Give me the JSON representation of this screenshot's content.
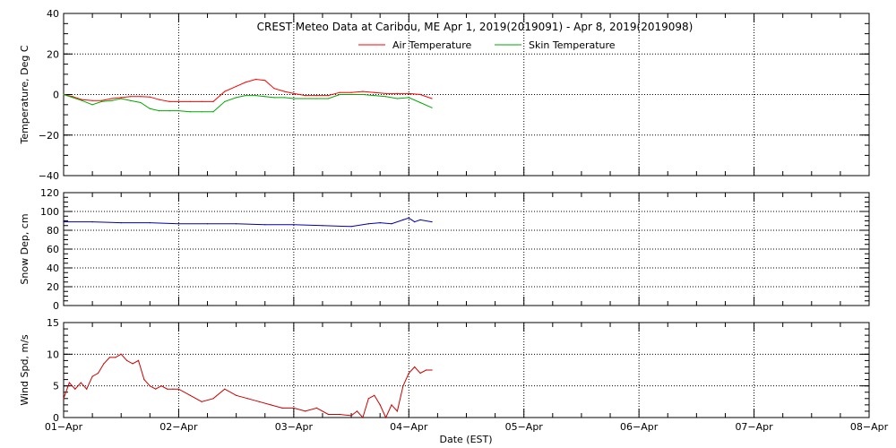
{
  "chart_data": [
    {
      "type": "line",
      "title": "CREST Meteo Data at Caribou, ME   Apr  1, 2019(2019091) - Apr  8, 2019(2019098)",
      "ylabel": "Temperature, Deg C",
      "ylim": [
        -40,
        40
      ],
      "yticks": [
        "40",
        "20",
        "0",
        "−20",
        "−40"
      ],
      "xlim": [
        0,
        7
      ],
      "grid": true,
      "legend_position": "top",
      "series": [
        {
          "name": "Air Temperature",
          "color": "#ff0000",
          "x": [
            0,
            0.08,
            0.16,
            0.25,
            0.33,
            0.42,
            0.5,
            0.58,
            0.67,
            0.75,
            0.83,
            0.92,
            1.0,
            1.1,
            1.2,
            1.3,
            1.4,
            1.5,
            1.58,
            1.67,
            1.75,
            1.83,
            1.92,
            2.0,
            2.1,
            2.2,
            2.3,
            2.4,
            2.5,
            2.6,
            2.7,
            2.8,
            2.9,
            3.0,
            3.1,
            3.2
          ],
          "values": [
            0,
            -1,
            -2.5,
            -3,
            -3,
            -2,
            -1.5,
            -1,
            -1,
            -1.2,
            -2.5,
            -3.5,
            -3.5,
            -3.5,
            -3.5,
            -3.5,
            1.5,
            4,
            6,
            7.5,
            7,
            3,
            1.5,
            0.5,
            -0.5,
            -0.5,
            -0.5,
            1,
            1,
            1.5,
            1,
            0.5,
            0.5,
            0.5,
            0,
            -2
          ]
        },
        {
          "name": "Skin Temperature",
          "color": "#00aa00",
          "x": [
            0,
            0.08,
            0.16,
            0.25,
            0.33,
            0.42,
            0.5,
            0.58,
            0.67,
            0.75,
            0.83,
            0.92,
            1.0,
            1.1,
            1.2,
            1.3,
            1.4,
            1.5,
            1.58,
            1.67,
            1.75,
            1.83,
            1.92,
            2.0,
            2.1,
            2.2,
            2.3,
            2.4,
            2.5,
            2.6,
            2.7,
            2.8,
            2.9,
            3.0,
            3.1,
            3.2
          ],
          "values": [
            0,
            -1.5,
            -3,
            -5,
            -3.5,
            -3,
            -2,
            -3,
            -4,
            -7,
            -8,
            -8,
            -8,
            -8.5,
            -8.5,
            -8.5,
            -3.5,
            -1.5,
            -0.5,
            -0.5,
            -1,
            -1.5,
            -1.5,
            -2,
            -2,
            -2,
            -2,
            0,
            0,
            0,
            -0.5,
            -1,
            -2,
            -1.5,
            -4,
            -6.5
          ]
        }
      ]
    },
    {
      "type": "line",
      "ylabel": "Snow Dep, cm",
      "ylim": [
        0,
        120
      ],
      "yticks": [
        "120",
        "100",
        "80",
        "60",
        "40",
        "20",
        "0"
      ],
      "xlim": [
        0,
        7
      ],
      "grid": true,
      "series": [
        {
          "color": "#0000aa",
          "x": [
            0,
            0.25,
            0.5,
            0.75,
            1.0,
            1.25,
            1.5,
            1.75,
            2.0,
            2.25,
            2.5,
            2.65,
            2.75,
            2.85,
            2.95,
            3.0,
            3.05,
            3.1,
            3.2
          ],
          "values": [
            89,
            89,
            88,
            88,
            87,
            87,
            87,
            86,
            86,
            85,
            84,
            87,
            88,
            87,
            91,
            93,
            89,
            91,
            89
          ]
        }
      ]
    },
    {
      "type": "line",
      "ylabel": "Wind Spd, m/s",
      "xlabel": "Date (EST)",
      "ylim": [
        0,
        15
      ],
      "yticks": [
        "15",
        "10",
        "5",
        "0"
      ],
      "xlim": [
        0,
        7
      ],
      "xticks": [
        "01−Apr",
        "02−Apr",
        "03−Apr",
        "04−Apr",
        "05−Apr",
        "06−Apr",
        "07−Apr",
        "08−Apr"
      ],
      "grid": true,
      "series": [
        {
          "color": "#cc0000",
          "x": [
            0,
            0.05,
            0.1,
            0.15,
            0.2,
            0.25,
            0.3,
            0.35,
            0.4,
            0.45,
            0.5,
            0.55,
            0.6,
            0.65,
            0.7,
            0.75,
            0.8,
            0.85,
            0.9,
            0.95,
            1.0,
            1.1,
            1.2,
            1.3,
            1.4,
            1.5,
            1.6,
            1.7,
            1.8,
            1.9,
            2.0,
            2.1,
            2.2,
            2.3,
            2.4,
            2.5,
            2.55,
            2.6,
            2.65,
            2.7,
            2.75,
            2.8,
            2.85,
            2.9,
            2.95,
            3.0,
            3.05,
            3.1,
            3.15,
            3.2
          ],
          "values": [
            3,
            5.5,
            4.5,
            5.5,
            4.5,
            6.5,
            7,
            8.5,
            9.5,
            9.5,
            10,
            9,
            8.5,
            9,
            6,
            5,
            4.5,
            5,
            4.5,
            4.5,
            4.5,
            3.5,
            2.5,
            3,
            4.5,
            3.5,
            3,
            2.5,
            2,
            1.5,
            1.5,
            1,
            1.5,
            0.5,
            0.5,
            0.3,
            1,
            0,
            3,
            3.5,
            2,
            0,
            2,
            1,
            5,
            7,
            8,
            7,
            7.5,
            7.5
          ]
        }
      ]
    }
  ]
}
